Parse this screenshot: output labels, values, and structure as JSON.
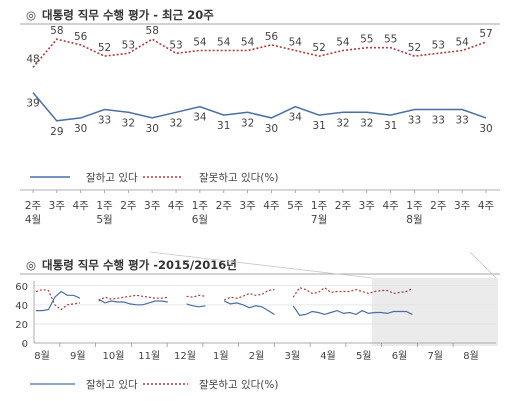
{
  "chart_data": [
    {
      "type": "line",
      "title": "대통령 직무 수행 평가 - 최근 20주",
      "title_marker": "◎",
      "categories": [
        [
          "2주",
          "4월"
        ],
        [
          "3주",
          ""
        ],
        [
          "4주",
          ""
        ],
        [
          "1주",
          "5월"
        ],
        [
          "2주",
          ""
        ],
        [
          "3주",
          ""
        ],
        [
          "4주",
          ""
        ],
        [
          "1주",
          "6월"
        ],
        [
          "2주",
          ""
        ],
        [
          "3주",
          ""
        ],
        [
          "4주",
          ""
        ],
        [
          "5주",
          ""
        ],
        [
          "1주",
          "7월"
        ],
        [
          "2주",
          ""
        ],
        [
          "3주",
          ""
        ],
        [
          "4주",
          ""
        ],
        [
          "1주",
          "8월"
        ],
        [
          "2주",
          ""
        ],
        [
          "3주",
          ""
        ],
        [
          "4주",
          ""
        ]
      ],
      "series": [
        {
          "name": "잘하고 있다",
          "color": "#4a6fa5",
          "style": "solid",
          "values": [
            39,
            29,
            30,
            33,
            32,
            30,
            32,
            34,
            31,
            32,
            30,
            34,
            31,
            32,
            32,
            31,
            33,
            33,
            33,
            30
          ]
        },
        {
          "name": "잘못하고 있다(%)",
          "color": "#b03a3a",
          "style": "dotted",
          "values": [
            48,
            58,
            56,
            52,
            53,
            58,
            53,
            54,
            54,
            54,
            56,
            54,
            52,
            54,
            55,
            55,
            52,
            53,
            54,
            57
          ]
        }
      ],
      "ylim": [
        25,
        62
      ],
      "grid": false,
      "legend_position": "bottom"
    },
    {
      "type": "line",
      "title": "대통령 직무 수행 평가 -2015/2016년",
      "title_marker": "◎",
      "y_ticks": [
        0,
        20,
        40,
        60
      ],
      "ylim": [
        0,
        65
      ],
      "month_labels": [
        "8월",
        "9월",
        "10월",
        "11월",
        "12월",
        "1월",
        "2월",
        "3월",
        "4월",
        "5월",
        "6월",
        "7월",
        "8월"
      ],
      "highlight": "recent 20 weeks (4월 2주 - 8월 4주)",
      "series": [
        {
          "name": "잘하고 있다",
          "color": "#4a6fa5",
          "style": "solid",
          "segments": [
            [
              34,
              34,
              35,
              48,
              54,
              50,
              50,
              47
            ],
            [
              46,
              42,
              44,
              43,
              43,
              41,
              40,
              40,
              42,
              44,
              44,
              43
            ],
            [
              41,
              39,
              38,
              39
            ],
            [
              44,
              41,
              42,
              40,
              37,
              39,
              38,
              34,
              30
            ],
            [
              39,
              29,
              30,
              33,
              32,
              30,
              32,
              34,
              31,
              32,
              30,
              34,
              31,
              32,
              32,
              31,
              33,
              33,
              33,
              30
            ]
          ]
        },
        {
          "name": "잘못하고 있다(%)",
          "color": "#b03a3a",
          "style": "dotted",
          "segments": [
            [
              54,
              56,
              55,
              40,
              35,
              40,
              41,
              42
            ],
            [
              44,
              48,
              46,
              47,
              48,
              49,
              50,
              49,
              48,
              47,
              47,
              48
            ],
            [
              49,
              48,
              50,
              49
            ],
            [
              45,
              48,
              47,
              49,
              52,
              50,
              51,
              55,
              56
            ],
            [
              48,
              58,
              56,
              52,
              53,
              58,
              53,
              54,
              54,
              54,
              56,
              54,
              52,
              54,
              55,
              55,
              52,
              53,
              54,
              57
            ]
          ]
        }
      ],
      "grid": true,
      "legend_position": "bottom"
    }
  ]
}
